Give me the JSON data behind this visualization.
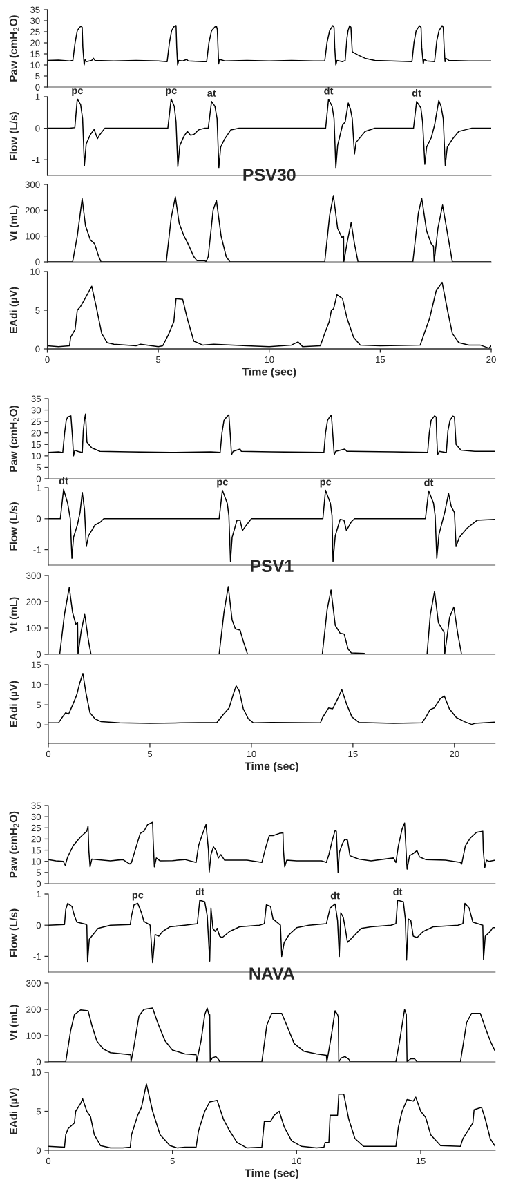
{
  "chart_data": [
    {
      "type": "line",
      "ylabel": "Paw (cmH$_{2}$O)",
      "color": "#000000",
      "xlim": [
        0,
        20
      ],
      "ylim": [
        0,
        35
      ],
      "yticks": [
        0,
        5,
        10,
        15,
        20,
        25,
        30,
        35
      ],
      "tick_labels": "y",
      "x": [
        0,
        0.5,
        1.0,
        1.15,
        1.25,
        1.35,
        1.45,
        1.52,
        1.57,
        1.6,
        1.66,
        1.7,
        1.75,
        2.0,
        2.08,
        2.15,
        3,
        4,
        5,
        5.4,
        5.5,
        5.6,
        5.72,
        5.8,
        5.83,
        5.87,
        5.92,
        6.1,
        6.28,
        6.35,
        7.0,
        7.18,
        7.28,
        7.4,
        7.55,
        7.62,
        7.66,
        7.69,
        7.72,
        7.76,
        8.0,
        9,
        10,
        11,
        12,
        12.5,
        12.6,
        12.72,
        12.86,
        12.92,
        12.95,
        13.0,
        13.05,
        13.3,
        13.42,
        13.5,
        13.55,
        13.62,
        13.68,
        13.74,
        14.0,
        14.32,
        14.76,
        15.5,
        16.43,
        16.52,
        16.62,
        16.77,
        16.84,
        16.87,
        16.94,
        16.98,
        17.1,
        17.45,
        17.55,
        17.65,
        17.79,
        17.84,
        17.88,
        17.92,
        17.96,
        18.1,
        19,
        20
      ],
      "values": [
        12,
        12.2,
        11.8,
        12,
        20,
        25.5,
        27,
        27.5,
        27,
        18,
        10,
        12.5,
        11.5,
        12,
        13,
        12,
        11.8,
        12,
        11.8,
        11.5,
        20,
        25.5,
        27.5,
        27.8,
        18,
        10,
        12,
        11.8,
        12.5,
        11.8,
        11.5,
        11.5,
        20,
        25.5,
        27.2,
        27.5,
        26,
        18,
        10.5,
        12.5,
        11.8,
        12,
        11.8,
        12,
        11.8,
        11.8,
        20,
        25.5,
        27.8,
        27,
        18,
        10,
        12,
        11.5,
        12,
        22,
        25.5,
        27.7,
        27,
        16,
        14.5,
        13,
        12,
        11.8,
        11.5,
        20,
        25.5,
        27.7,
        27,
        18,
        10.5,
        12.5,
        11.8,
        11.5,
        21,
        25.5,
        27.8,
        27,
        18,
        11.5,
        13,
        12,
        11.8,
        11.8
      ]
    },
    {
      "type": "line",
      "ylabel": "Flow (L/s)",
      "color": "#000000",
      "xlim": [
        0,
        20
      ],
      "ylim": [
        -1.5,
        1
      ],
      "yticks": [
        -1,
        0,
        1
      ],
      "tick_labels": "y",
      "annotations": [
        {
          "text": "pc",
          "x": 1.35,
          "y": 0.93
        },
        {
          "text": "pc",
          "x": 5.58,
          "y": 0.93
        },
        {
          "text": "at",
          "x": 7.4,
          "y": 0.85
        },
        {
          "text": "dt",
          "x": 12.67,
          "y": 0.92
        },
        {
          "text": "dt",
          "x": 16.64,
          "y": 0.85
        }
      ],
      "x": [
        0,
        1.0,
        1.24,
        1.35,
        1.5,
        1.59,
        1.67,
        1.75,
        1.94,
        2.11,
        2.26,
        2.37,
        2.59,
        5.43,
        5.58,
        5.72,
        5.8,
        5.88,
        5.97,
        6.16,
        6.31,
        6.45,
        6.6,
        6.82,
        7.1,
        7.25,
        7.4,
        7.55,
        7.65,
        7.73,
        7.81,
        7.98,
        8.27,
        8.64,
        12.54,
        12.67,
        12.83,
        12.92,
        13.0,
        13.08,
        13.3,
        13.42,
        13.56,
        13.66,
        13.74,
        13.84,
        13.91,
        14.32,
        14.76,
        16.5,
        16.64,
        16.83,
        16.91,
        17.01,
        17.09,
        17.3,
        17.45,
        17.64,
        17.74,
        17.84,
        17.93,
        18.02,
        18.25,
        18.54,
        18.83,
        19.13,
        20
      ],
      "values": [
        0,
        0,
        0.02,
        0.93,
        0.75,
        0.3,
        -1.2,
        -0.5,
        -0.2,
        -0.04,
        -0.33,
        -0.2,
        0,
        0,
        0.93,
        0.7,
        0.2,
        -1.22,
        -0.55,
        -0.25,
        -0.1,
        -0.22,
        -0.2,
        -0.05,
        0,
        0,
        0.85,
        0.7,
        0.3,
        -1.25,
        -0.6,
        -0.35,
        -0.05,
        0,
        0,
        0.92,
        0.7,
        0.3,
        -1.25,
        -0.55,
        0.1,
        0.2,
        0.8,
        0.6,
        0.3,
        -0.82,
        -0.45,
        -0.1,
        0,
        0,
        0.85,
        0.65,
        0.2,
        -1.15,
        -0.6,
        -0.3,
        0.1,
        0.88,
        0.7,
        0.3,
        -1.18,
        -0.6,
        -0.35,
        -0.1,
        -0.05,
        0,
        0
      ]
    },
    {
      "type": "line",
      "title": "PSV30",
      "ylabel": "Vt (mL)",
      "color": "#000000",
      "xlim": [
        0,
        20
      ],
      "ylim": [
        0,
        300
      ],
      "yticks": [
        0,
        100,
        200,
        300
      ],
      "tick_labels": "y",
      "x": [
        0,
        1.14,
        1.35,
        1.57,
        1.72,
        1.94,
        2.13,
        2.3,
        2.42,
        5.36,
        5.58,
        5.77,
        5.94,
        6.16,
        6.34,
        6.6,
        6.74,
        7.1,
        7.15,
        7.25,
        7.47,
        7.62,
        7.83,
        8.06,
        8.23,
        12.5,
        12.72,
        12.89,
        13.08,
        13.27,
        13.35,
        13.36,
        13.52,
        13.69,
        13.84,
        14.0,
        16.47,
        16.72,
        16.87,
        17.09,
        17.3,
        17.4,
        17.43,
        17.6,
        17.81,
        18.03,
        18.25,
        20
      ],
      "values": [
        0,
        0,
        100,
        245,
        140,
        85,
        70,
        25,
        0,
        0,
        170,
        252,
        150,
        100,
        70,
        20,
        5,
        5,
        0,
        20,
        200,
        238,
        100,
        20,
        0,
        0,
        180,
        257,
        130,
        95,
        100,
        0,
        80,
        152,
        70,
        0,
        0,
        190,
        246,
        120,
        70,
        60,
        0,
        130,
        220,
        110,
        0,
        0
      ]
    },
    {
      "type": "line",
      "xlabel": "Time (sec)",
      "ylabel": "EAdi (µV)",
      "color": "#000000",
      "xlim": [
        0,
        20
      ],
      "xticks": [
        0,
        5,
        10,
        15,
        20
      ],
      "ylim": [
        0,
        10
      ],
      "yticks": [
        0,
        5,
        10
      ],
      "x": [
        0,
        0.5,
        1.0,
        1.05,
        1.15,
        1.25,
        1.35,
        1.5,
        1.7,
        1.85,
        2.0,
        2.2,
        2.45,
        2.7,
        3.0,
        4.0,
        4.2,
        5.0,
        5.2,
        5.45,
        5.7,
        5.8,
        6.1,
        6.3,
        6.6,
        7.0,
        7.5,
        9,
        10,
        11.0,
        11.3,
        11.5,
        12.3,
        12.5,
        12.7,
        12.8,
        12.9,
        13.05,
        13.3,
        13.5,
        13.8,
        14.1,
        15,
        16.8,
        17.23,
        17.52,
        17.79,
        18.03,
        18.25,
        18.54,
        19.0,
        19.5,
        19.9,
        20
      ],
      "values": [
        0.4,
        0.3,
        0.4,
        1.5,
        2.0,
        2.5,
        5.0,
        5.5,
        6.5,
        7.3,
        8.1,
        5.5,
        2.0,
        0.8,
        0.6,
        0.4,
        0.6,
        0.3,
        0.4,
        1.8,
        3.5,
        6.5,
        6.4,
        4.0,
        1.0,
        0.5,
        0.6,
        0.4,
        0.3,
        0.5,
        0.9,
        0.3,
        0.4,
        2.0,
        3.5,
        5.0,
        5.2,
        7.0,
        6.5,
        4.0,
        1.5,
        0.5,
        0.4,
        0.5,
        4.0,
        7.5,
        8.6,
        5.0,
        2.0,
        0.8,
        0.5,
        0.5,
        0.1,
        0.4
      ]
    },
    {
      "type": "line",
      "ylabel": "Paw (cmH$_{2}$O)",
      "color": "#000000",
      "xlim": [
        0,
        22
      ],
      "ylim": [
        0,
        35
      ],
      "yticks": [
        0,
        5,
        10,
        15,
        20,
        25,
        30,
        35
      ],
      "tick_labels": "y",
      "x": [
        0,
        0.5,
        0.71,
        0.8,
        0.88,
        0.95,
        1.11,
        1.19,
        1.24,
        1.3,
        1.45,
        1.67,
        1.72,
        1.78,
        1.83,
        1.9,
        2.14,
        2.54,
        4,
        6,
        8,
        8.46,
        8.55,
        8.65,
        8.78,
        8.89,
        8.97,
        9.02,
        9.1,
        9.44,
        9.5,
        11,
        13.57,
        13.65,
        13.75,
        13.85,
        13.94,
        14.02,
        14.08,
        14.15,
        14.6,
        14.7,
        17,
        18.68,
        18.76,
        18.85,
        19.02,
        19.1,
        19.13,
        19.17,
        19.25,
        19.6,
        19.68,
        19.78,
        19.92,
        20.0,
        20.08,
        20.32,
        21,
        22
      ],
      "values": [
        11.5,
        11.8,
        11.5,
        20,
        25.5,
        27,
        27.5,
        18,
        10,
        12.5,
        12,
        11.5,
        21,
        26,
        28.3,
        16,
        13.5,
        12,
        11.8,
        11.5,
        11.8,
        11.5,
        20,
        25.5,
        27,
        28,
        18,
        10.5,
        12,
        13,
        12,
        11.8,
        11.5,
        20,
        25.5,
        27,
        27.8,
        18,
        10.5,
        12,
        13,
        12,
        11.8,
        11.5,
        20,
        25.5,
        27.5,
        27,
        18,
        10.5,
        12,
        11.5,
        21,
        25.5,
        27.4,
        27,
        15,
        12.5,
        12,
        12
      ]
    },
    {
      "type": "line",
      "ylabel": "Flow (L/s)",
      "color": "#000000",
      "xlim": [
        0,
        22
      ],
      "ylim": [
        -1.5,
        1
      ],
      "yticks": [
        -1,
        0,
        1
      ],
      "tick_labels": "y",
      "annotations": [
        {
          "text": "dt",
          "x": 0.75,
          "y": 0.95
        },
        {
          "text": "pc",
          "x": 8.57,
          "y": 0.92
        },
        {
          "text": "pc",
          "x": 13.65,
          "y": 0.92
        },
        {
          "text": "dt",
          "x": 18.73,
          "y": 0.9
        }
      ],
      "x": [
        0,
        0.59,
        0.75,
        0.95,
        1.08,
        1.16,
        1.24,
        1.43,
        1.56,
        1.67,
        1.78,
        1.87,
        1.98,
        2.3,
        2.54,
        2.73,
        8.41,
        8.57,
        8.81,
        8.89,
        8.97,
        9.05,
        9.29,
        9.44,
        9.56,
        9.76,
        10.0,
        13.52,
        13.65,
        13.89,
        13.97,
        14.02,
        14.13,
        14.37,
        14.56,
        14.68,
        14.92,
        15.08,
        18.57,
        18.73,
        18.97,
        19.05,
        19.13,
        19.24,
        19.52,
        19.71,
        19.84,
        20.0,
        20.08,
        20.24,
        20.63,
        21.11,
        22
      ],
      "values": [
        0,
        0,
        0.95,
        0.5,
        0,
        -1.28,
        -0.6,
        -0.2,
        0.2,
        0.85,
        0.3,
        -0.9,
        -0.55,
        -0.2,
        -0.12,
        0,
        0,
        0.92,
        0.5,
        0.1,
        -1.38,
        -0.6,
        -0.05,
        -0.05,
        -0.38,
        -0.2,
        0,
        0,
        0.92,
        0.5,
        0.1,
        -1.38,
        -0.55,
        -0.02,
        -0.05,
        -0.38,
        -0.1,
        0,
        0,
        0.9,
        0.5,
        0.1,
        -1.28,
        -0.5,
        0.2,
        0.82,
        0.4,
        0.2,
        -0.9,
        -0.6,
        -0.3,
        -0.05,
        -0.02
      ]
    },
    {
      "type": "line",
      "title": "PSV1",
      "ylabel": "Vt (mL)",
      "color": "#000000",
      "xlim": [
        0,
        22
      ],
      "ylim": [
        0,
        300
      ],
      "yticks": [
        0,
        100,
        200,
        300
      ],
      "tick_labels": "y",
      "x": [
        0,
        0.56,
        0.79,
        1.03,
        1.19,
        1.35,
        1.44,
        1.46,
        1.62,
        1.79,
        1.98,
        2.1,
        8.41,
        8.65,
        8.86,
        9.05,
        9.21,
        9.44,
        9.6,
        9.81,
        13.49,
        13.73,
        13.92,
        14.13,
        14.37,
        14.57,
        14.76,
        14.92,
        15.56,
        15.63,
        18.65,
        18.81,
        19.02,
        19.21,
        19.49,
        19.52,
        19.76,
        19.97,
        20.16,
        20.35,
        22
      ],
      "values": [
        0,
        0,
        150,
        255,
        160,
        115,
        120,
        0,
        90,
        152,
        50,
        0,
        0,
        160,
        258,
        130,
        97,
        92,
        50,
        0,
        0,
        170,
        245,
        110,
        80,
        77,
        20,
        5,
        3,
        0,
        0,
        150,
        240,
        120,
        83,
        0,
        140,
        180,
        80,
        0,
        0
      ]
    },
    {
      "type": "line",
      "xlabel": "Time (sec)",
      "ylabel": "EAdi (µV)",
      "color": "#000000",
      "xlim": [
        0,
        22
      ],
      "xticks": [
        0,
        5,
        10,
        15,
        20
      ],
      "ylim": [
        -4.6,
        15
      ],
      "yticks": [
        0,
        5,
        10,
        15
      ],
      "x": [
        0,
        0.5,
        0.7,
        0.85,
        1.0,
        1.2,
        1.4,
        1.55,
        1.7,
        1.85,
        2.05,
        2.3,
        2.6,
        3.5,
        5,
        6.5,
        8.3,
        8.6,
        8.9,
        9.1,
        9.25,
        9.4,
        9.6,
        9.85,
        10.1,
        11,
        13.4,
        13.5,
        13.8,
        14.0,
        14.3,
        14.45,
        14.7,
        14.95,
        15.3,
        17,
        18.4,
        18.6,
        18.8,
        19.0,
        19.3,
        19.5,
        19.75,
        20.1,
        20.5,
        20.85,
        21,
        22
      ],
      "values": [
        0.5,
        0.5,
        2.0,
        3.0,
        2.7,
        5.0,
        7.5,
        10.5,
        12.8,
        8.0,
        3.0,
        1.5,
        0.8,
        0.5,
        0.4,
        0.5,
        0.6,
        2.5,
        4.2,
        7.5,
        9.7,
        8.5,
        4.0,
        1.5,
        0.5,
        0.6,
        0.5,
        1.8,
        4.2,
        4.0,
        7.0,
        8.8,
        5.0,
        2.0,
        0.6,
        0.4,
        0.5,
        2.0,
        3.8,
        4.2,
        6.5,
        7.2,
        4.0,
        1.8,
        0.8,
        0.1,
        0.4,
        0.7
      ]
    },
    {
      "type": "line",
      "ylabel": "Paw (cmH$_{2}$O)",
      "color": "#000000",
      "xlim": [
        0,
        18
      ],
      "ylim": [
        0,
        35
      ],
      "yticks": [
        0,
        5,
        10,
        15,
        20,
        25,
        30,
        35
      ],
      "tick_labels": "y",
      "x": [
        0,
        0.3,
        0.6,
        0.68,
        0.78,
        1.0,
        1.3,
        1.55,
        1.6,
        1.63,
        1.68,
        1.75,
        2.5,
        3.0,
        3.28,
        3.35,
        3.55,
        3.7,
        3.85,
        4.0,
        4.2,
        4.22,
        4.27,
        4.35,
        4.5,
        5.0,
        5.5,
        5.95,
        6.05,
        6.2,
        6.35,
        6.45,
        6.48,
        6.55,
        6.65,
        6.75,
        6.85,
        6.95,
        7.1,
        8.0,
        8.6,
        8.75,
        8.9,
        9.05,
        9.3,
        9.45,
        9.47,
        9.52,
        9.6,
        10,
        11,
        11.2,
        11.3,
        11.45,
        11.55,
        11.6,
        11.67,
        11.72,
        11.85,
        11.95,
        12.05,
        12.15,
        12.5,
        13,
        13.9,
        14.0,
        14.1,
        14.25,
        14.35,
        14.45,
        14.55,
        14.7,
        14.85,
        14.95,
        15.2,
        16,
        16.6,
        16.65,
        16.8,
        17.0,
        17.25,
        17.5,
        17.52,
        17.58,
        17.65,
        17.75,
        18
      ],
      "values": [
        10.8,
        10.2,
        10.0,
        8.2,
        12,
        17,
        21,
        23.5,
        25.8,
        15,
        7.5,
        11,
        10.2,
        10.8,
        8.8,
        9.5,
        17,
        22.5,
        23.5,
        26.5,
        27.5,
        20,
        7.5,
        11.5,
        10.2,
        10.3,
        10.8,
        9.5,
        17,
        22,
        26.5,
        15,
        5.2,
        13,
        16.5,
        15,
        11.5,
        13,
        10.5,
        10.5,
        9.5,
        16,
        21.5,
        21.5,
        22.5,
        22.8,
        15,
        7.5,
        10.5,
        10.2,
        10.2,
        9.5,
        13,
        20,
        23.8,
        23.5,
        5,
        14,
        18,
        20,
        19.5,
        12.5,
        11,
        10.2,
        11.5,
        9.5,
        17,
        24.5,
        27.2,
        6.5,
        12.5,
        13.5,
        14.8,
        12,
        10.8,
        10.5,
        9.5,
        8.8,
        17,
        20.5,
        23,
        23.5,
        15,
        7.2,
        10.5,
        10,
        10.5
      ]
    },
    {
      "type": "line",
      "ylabel": "Flow (L/s)",
      "color": "#000000",
      "xlim": [
        0,
        18
      ],
      "ylim": [
        -1.5,
        1
      ],
      "yticks": [
        -1,
        0,
        1
      ],
      "tick_labels": "y",
      "annotations": [
        {
          "text": "pc",
          "x": 3.6,
          "y": 0.7
        },
        {
          "text": "dt",
          "x": 6.1,
          "y": 0.8
        },
        {
          "text": "dt",
          "x": 11.55,
          "y": 0.68
        },
        {
          "text": "dt",
          "x": 14.07,
          "y": 0.8
        }
      ],
      "x": [
        0,
        0.65,
        0.7,
        0.78,
        0.95,
        1.05,
        1.15,
        1.5,
        1.55,
        1.58,
        1.65,
        1.8,
        2.0,
        2.5,
        3.3,
        3.35,
        3.45,
        3.6,
        3.75,
        3.85,
        4.0,
        4.1,
        4.2,
        4.3,
        4.45,
        4.6,
        4.9,
        5.5,
        6.0,
        6.1,
        6.3,
        6.4,
        6.5,
        6.55,
        6.63,
        6.72,
        6.8,
        6.9,
        7.0,
        7.3,
        7.7,
        8.5,
        8.7,
        8.78,
        8.95,
        9.05,
        9.35,
        9.4,
        9.5,
        9.7,
        10.0,
        10.5,
        11.2,
        11.35,
        11.55,
        11.65,
        11.72,
        11.78,
        11.88,
        11.97,
        12.05,
        12.3,
        12.6,
        13.0,
        13.8,
        14.0,
        14.07,
        14.3,
        14.38,
        14.43,
        14.5,
        14.6,
        14.7,
        14.85,
        15.1,
        15.5,
        16.5,
        16.7,
        16.78,
        16.95,
        17.1,
        17.5,
        17.53,
        17.6,
        17.8,
        17.9,
        18
      ],
      "values": [
        0,
        0.02,
        0.5,
        0.7,
        0.6,
        0.3,
        0.1,
        0.03,
        0.0,
        -1.18,
        -0.45,
        -0.3,
        -0.1,
        0,
        0.02,
        0.3,
        0.65,
        0.7,
        0.4,
        0.12,
        0.05,
        0.0,
        -1.2,
        -0.3,
        -0.35,
        -0.2,
        -0.05,
        0,
        0.05,
        0.8,
        0.75,
        0.3,
        -1.15,
        0.55,
        -0.1,
        -0.2,
        -0.1,
        -0.35,
        -0.4,
        -0.2,
        -0.05,
        0,
        0.05,
        0.65,
        0.6,
        0.2,
        0.0,
        -1.0,
        -0.55,
        -0.3,
        -0.08,
        0,
        0.05,
        0.55,
        0.68,
        0.15,
        -1.0,
        0.4,
        0.25,
        -0.15,
        -0.55,
        -0.35,
        -0.1,
        -0.05,
        0.0,
        0.05,
        0.8,
        0.75,
        0.2,
        -1.12,
        0.2,
        0.15,
        -0.35,
        -0.4,
        -0.2,
        -0.05,
        0,
        0.05,
        0.7,
        0.55,
        0.1,
        0.0,
        -1.1,
        -0.35,
        -0.2,
        -0.08,
        -0.08
      ]
    },
    {
      "type": "line",
      "title": "NAVA",
      "ylabel": "Vt (mL)",
      "color": "#000000",
      "xlim": [
        0,
        18
      ],
      "ylim": [
        0,
        300
      ],
      "yticks": [
        0,
        100,
        200,
        300
      ],
      "tick_labels": "y",
      "x": [
        0,
        0.7,
        0.9,
        1.05,
        1.3,
        1.6,
        1.75,
        1.95,
        2.2,
        2.5,
        3.32,
        3.33,
        3.45,
        3.65,
        3.85,
        4.2,
        4.4,
        4.7,
        5.0,
        5.5,
        5.95,
        5.97,
        6.15,
        6.3,
        6.4,
        6.48,
        6.5,
        6.52,
        6.6,
        6.75,
        6.85,
        6.9,
        8.6,
        8.8,
        9.0,
        9.4,
        9.6,
        9.9,
        10.3,
        10.8,
        11.2,
        11.22,
        11.4,
        11.55,
        11.65,
        11.68,
        11.7,
        11.8,
        11.95,
        12.1,
        12.15,
        14.0,
        14.15,
        14.35,
        14.42,
        14.45,
        14.6,
        14.75,
        14.85,
        16.6,
        16.85,
        17.05,
        17.4,
        17.6,
        17.8,
        18.0
      ],
      "values": [
        0,
        0,
        120,
        180,
        198,
        195,
        140,
        80,
        50,
        35,
        27,
        0,
        60,
        175,
        200,
        205,
        150,
        80,
        45,
        30,
        27,
        0,
        80,
        180,
        205,
        175,
        180,
        0,
        15,
        20,
        10,
        0,
        0,
        140,
        185,
        185,
        140,
        70,
        40,
        30,
        25,
        0,
        100,
        195,
        180,
        170,
        0,
        15,
        20,
        10,
        0,
        0,
        80,
        200,
        180,
        0,
        12,
        12,
        0,
        0,
        150,
        185,
        185,
        130,
        80,
        40
      ]
    },
    {
      "type": "line",
      "xlabel": "Time (sec)",
      "ylabel": "EAdi (µV)",
      "color": "#000000",
      "xlim": [
        0,
        18
      ],
      "xticks": [
        0,
        5,
        10,
        15
      ],
      "ylim": [
        0,
        10
      ],
      "yticks": [
        0,
        5,
        10
      ],
      "x": [
        0,
        0.65,
        0.7,
        0.8,
        1.05,
        1.1,
        1.3,
        1.38,
        1.55,
        1.7,
        1.85,
        2.1,
        2.5,
        3.0,
        3.3,
        3.35,
        3.6,
        3.75,
        3.95,
        4.2,
        4.5,
        4.9,
        5.2,
        5.5,
        5.95,
        6.05,
        6.3,
        6.5,
        6.8,
        7.05,
        7.3,
        7.6,
        8.0,
        8.6,
        8.7,
        8.95,
        9.1,
        9.3,
        9.5,
        9.8,
        10.2,
        10.8,
        11.1,
        11.15,
        11.3,
        11.35,
        11.65,
        11.7,
        11.9,
        12.1,
        12.35,
        12.7,
        14.0,
        14.1,
        14.25,
        14.45,
        14.7,
        14.8,
        15.0,
        15.2,
        15.4,
        15.8,
        16.6,
        16.7,
        17.0,
        17.1,
        17.15,
        17.45,
        17.6,
        17.8,
        18.0
      ],
      "values": [
        0.5,
        0.4,
        2.0,
        2.8,
        3.5,
        5.0,
        6.0,
        6.6,
        5.0,
        4.3,
        2.0,
        0.6,
        0.3,
        0.3,
        0.4,
        2.0,
        4.5,
        5.5,
        8.5,
        5.0,
        2.0,
        0.6,
        0.3,
        0.4,
        0.4,
        2.5,
        5.0,
        6.2,
        6.4,
        4.0,
        2.5,
        1.0,
        0.3,
        0.4,
        3.7,
        3.7,
        4.5,
        5.0,
        3.0,
        1.2,
        0.5,
        0.3,
        0.4,
        1.0,
        1.0,
        4.5,
        4.5,
        7.2,
        7.2,
        4.0,
        1.5,
        0.5,
        0.5,
        3.0,
        5.0,
        6.5,
        6.3,
        6.8,
        5.0,
        4.2,
        2.0,
        0.6,
        0.5,
        1.5,
        3.0,
        3.5,
        5.2,
        5.5,
        4.0,
        1.5,
        0.5
      ]
    }
  ]
}
